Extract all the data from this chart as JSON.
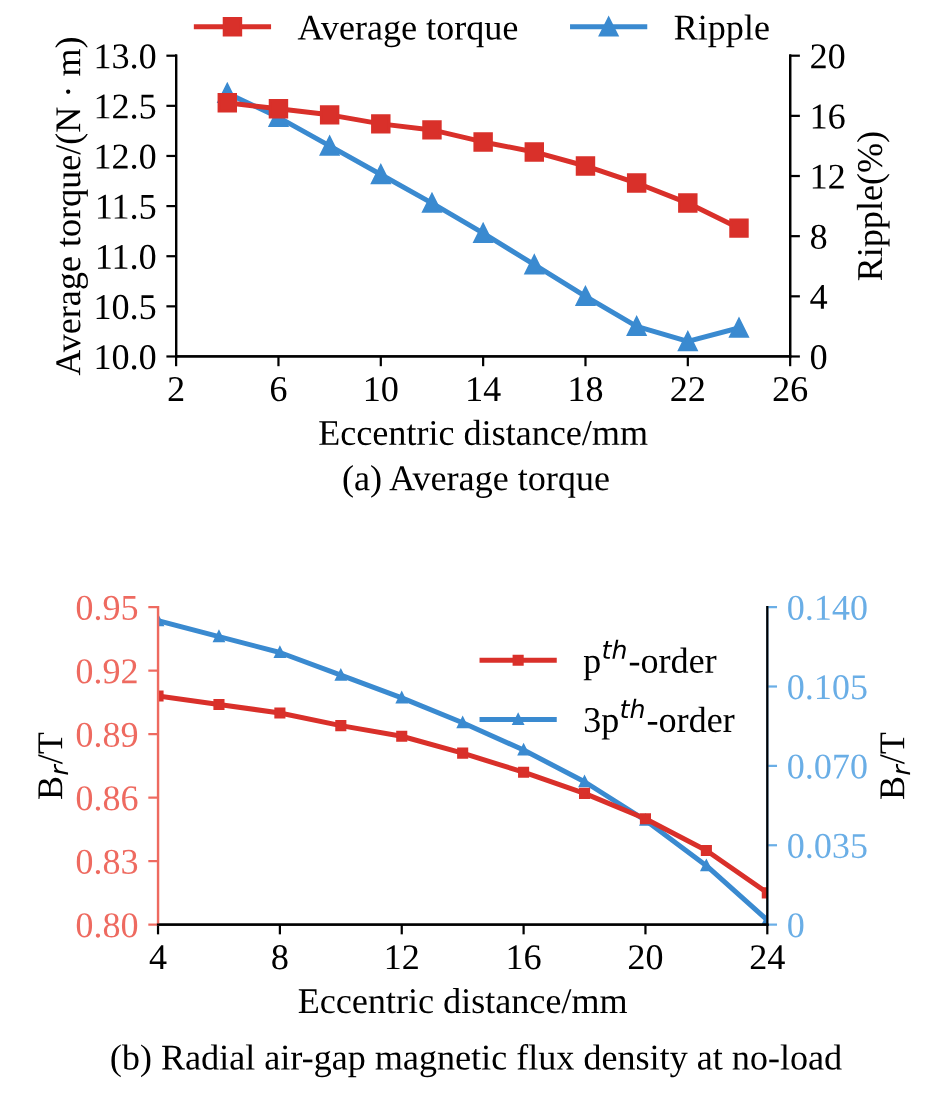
{
  "chart_data": [
    {
      "type": "line",
      "title": "(a) Average torque",
      "xlabel": "Eccentric distance/mm",
      "ylabel": "Average torque/(N · m)",
      "y2label": "Ripple(%)",
      "x": [
        4,
        6,
        8,
        10,
        12,
        14,
        16,
        18,
        20,
        22,
        24
      ],
      "series": [
        {
          "name": "Average torque",
          "color": "#d9302a",
          "marker": "square",
          "values": [
            12.53,
            12.47,
            12.41,
            12.32,
            12.26,
            12.14,
            12.04,
            11.9,
            11.73,
            11.53,
            11.28
          ]
        },
        {
          "name": "Ripple",
          "color": "#3a8ad0",
          "marker": "triangle",
          "axis": "y2",
          "values": [
            17.5,
            15.9,
            14.0,
            12.1,
            10.2,
            8.2,
            6.1,
            4.0,
            2.0,
            1.0,
            1.9
          ]
        }
      ],
      "xlim": [
        2,
        26
      ],
      "xticks": [
        2,
        6,
        10,
        14,
        18,
        22,
        26
      ],
      "ylim": [
        10.0,
        13.0
      ],
      "yticks": [
        {
          "value": 10.0,
          "label": "10.0"
        },
        {
          "value": 10.5,
          "label": "10.5"
        },
        {
          "value": 11.0,
          "label": "11.0"
        },
        {
          "value": 11.5,
          "label": "11.5"
        },
        {
          "value": 12.0,
          "label": "12.0"
        },
        {
          "value": 12.5,
          "label": "12.5"
        },
        {
          "value": 13.0,
          "label": "13.0"
        }
      ],
      "y2lim": [
        0,
        20
      ],
      "y2ticks": [
        0,
        4,
        8,
        12,
        16,
        20
      ],
      "legend": "top",
      "grid": false,
      "line_style": "solid"
    },
    {
      "type": "line",
      "title": "(b) Radial air-gap magnetic flux density at no-load",
      "xlabel": "Eccentric distance/mm",
      "ylabel": "B$_{r}$/T",
      "y2label": "B$_{r}$/T",
      "x": [
        4,
        6,
        8,
        10,
        12,
        14,
        16,
        18,
        20,
        22,
        24
      ],
      "series": [
        {
          "name": "p$^{th}$-order",
          "color": "#d9302a",
          "marker": "square",
          "values": [
            0.908,
            0.904,
            0.9,
            0.894,
            0.889,
            0.881,
            0.872,
            0.862,
            0.85,
            0.835,
            0.815
          ]
        },
        {
          "name": "3p$^{th}$-order",
          "color": "#3a8ad0",
          "marker": "triangle",
          "axis": "y2",
          "values": [
            0.134,
            0.127,
            0.12,
            0.11,
            0.1,
            0.089,
            0.077,
            0.063,
            0.046,
            0.026,
            0.002
          ]
        }
      ],
      "xlim": [
        4,
        24
      ],
      "xticks": [
        4,
        8,
        12,
        16,
        20,
        24
      ],
      "ylim": [
        0.8,
        0.95
      ],
      "yticks": [
        {
          "value": 0.8,
          "label": "0.80"
        },
        0.83,
        0.86,
        0.89,
        0.92,
        0.95
      ],
      "y2lim": [
        0,
        0.14
      ],
      "y2ticks": [
        0,
        0.035,
        {
          "value": 0.07,
          "label": "0.070"
        },
        0.105,
        {
          "value": 0.14,
          "label": "0.140"
        }
      ],
      "legend": "top right",
      "grid": false,
      "line_style": "solid"
    }
  ]
}
